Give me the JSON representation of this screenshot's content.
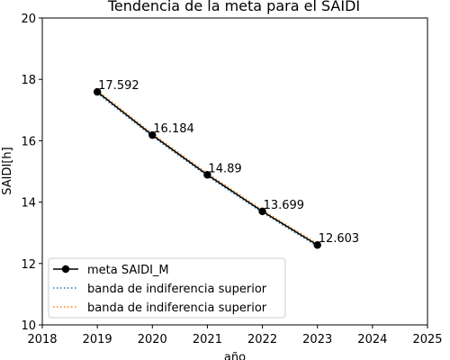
{
  "chart_data": {
    "type": "line",
    "title": "Tendencia de la meta para el  SAIDI",
    "xlabel": "año",
    "ylabel": "SAIDI[h]",
    "xlim": [
      2018,
      2025
    ],
    "ylim": [
      10,
      20
    ],
    "xticks": [
      2018,
      2019,
      2020,
      2021,
      2022,
      2023,
      2024,
      2025
    ],
    "yticks": [
      10,
      12,
      14,
      16,
      18,
      20
    ],
    "xtick_labels": [
      "2018",
      "2019",
      "2020",
      "2021",
      "2022",
      "2023",
      "2024",
      "2025"
    ],
    "ytick_labels": [
      "10",
      "12",
      "14",
      "16",
      "18",
      "20"
    ],
    "grid": false,
    "legend_position": "lower-left",
    "x": [
      2019,
      2020,
      2021,
      2022,
      2023
    ],
    "series": [
      {
        "name": "meta SAIDI_M",
        "values": [
          17.592,
          16.184,
          14.89,
          13.699,
          12.603
        ],
        "color": "#000000",
        "style": "solid",
        "marker": "circle"
      },
      {
        "name": "banda de indiferencia superior",
        "values": [
          17.55,
          16.14,
          14.85,
          13.66,
          12.56
        ],
        "color": "#1f77b4",
        "style": "dotted",
        "marker": "none"
      },
      {
        "name": "banda de indiferencia superior",
        "values": [
          17.64,
          16.23,
          14.94,
          13.74,
          12.65
        ],
        "color": "#ff7f0e",
        "style": "dotted",
        "marker": "none"
      }
    ],
    "data_labels": [
      "17.592",
      "16.184",
      "14.89",
      "13.699",
      "12.603"
    ]
  }
}
